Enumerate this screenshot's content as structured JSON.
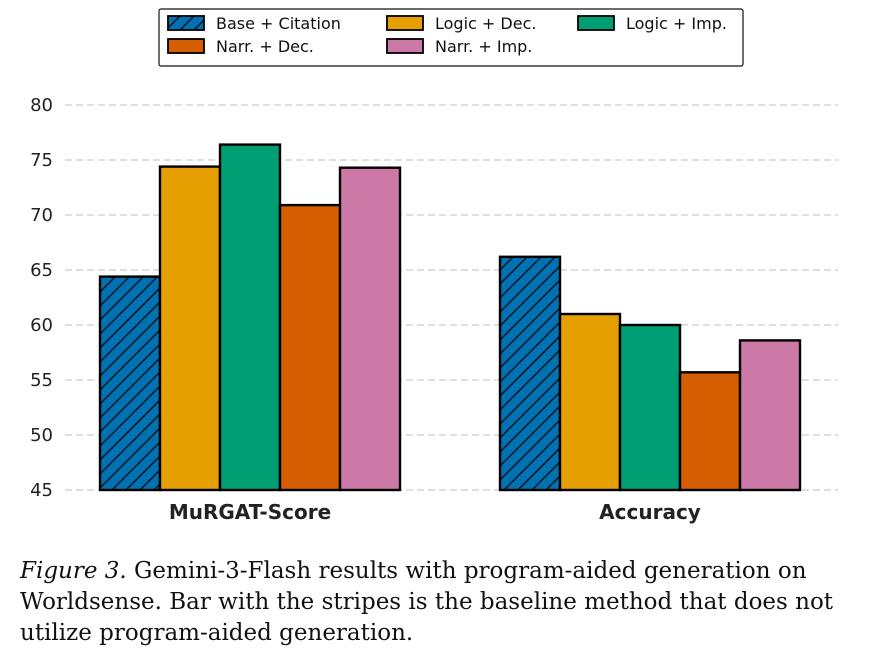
{
  "chart_data": {
    "type": "bar",
    "title": "",
    "xlabel": "",
    "ylabel": "",
    "ylim": [
      45,
      80
    ],
    "yticks": [
      45,
      50,
      55,
      60,
      65,
      70,
      75,
      80
    ],
    "grid": true,
    "legend_position": "top-center",
    "categories": [
      "MuRGAT-Score",
      "Accuracy"
    ],
    "series": [
      {
        "name": "Base + Citation",
        "color": "#0072B2",
        "hatch": true,
        "values": [
          64.4,
          66.2
        ]
      },
      {
        "name": "Logic + Dec.",
        "color": "#E69F00",
        "hatch": false,
        "values": [
          74.4,
          61.0
        ]
      },
      {
        "name": "Logic + Imp.",
        "color": "#009E73",
        "hatch": false,
        "values": [
          76.4,
          60.0
        ]
      },
      {
        "name": "Narr. + Dec.",
        "color": "#D55E00",
        "hatch": false,
        "values": [
          70.9,
          55.7
        ]
      },
      {
        "name": "Narr. + Imp.",
        "color": "#CC79A7",
        "hatch": false,
        "values": [
          74.3,
          58.6
        ]
      }
    ]
  },
  "caption": {
    "label": "Figure 3.",
    "text": " Gemini-3-Flash results with program-aided generation on Worldsense. Bar with the stripes is the baseline method that does not utilize program-aided generation."
  }
}
